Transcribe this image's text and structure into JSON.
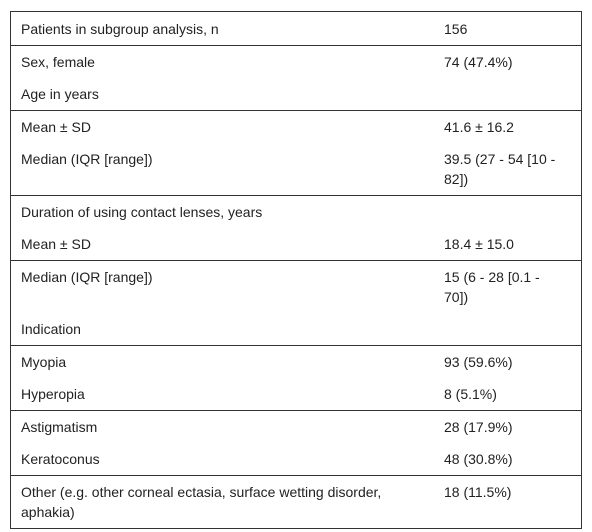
{
  "table": {
    "groups": [
      [
        {
          "label": "Patients in subgroup analysis, n",
          "value": "156"
        }
      ],
      [
        {
          "label": "Sex, female",
          "value": "74 (47.4%)"
        },
        {
          "label": "Age in years"
        }
      ],
      [
        {
          "label": "Mean ± SD",
          "value": "41.6 ± 16.2"
        },
        {
          "label": "Median (IQR [range])",
          "value": "39.5 (27 - 54 [10 - 82])"
        }
      ],
      [
        {
          "label": "Duration of using contact lenses, years"
        },
        {
          "label": "Mean ± SD",
          "value": "18.4 ± 15.0"
        }
      ],
      [
        {
          "label": "Median (IQR [range])",
          "value": "15 (6 - 28 [0.1 - 70])"
        },
        {
          "label": "Indication"
        }
      ],
      [
        {
          "label": "Myopia",
          "value": "93 (59.6%)"
        },
        {
          "label": "Hyperopia",
          "value": "8 (5.1%)"
        }
      ],
      [
        {
          "label": "Astigmatism",
          "value": "28 (17.9%)"
        },
        {
          "label": "Keratoconus",
          "value": "48 (30.8%)"
        }
      ],
      [
        {
          "label": "Other (e.g. other corneal ectasia, surface wetting disorder, aphakia)",
          "value": "18 (11.5%)"
        }
      ]
    ]
  }
}
